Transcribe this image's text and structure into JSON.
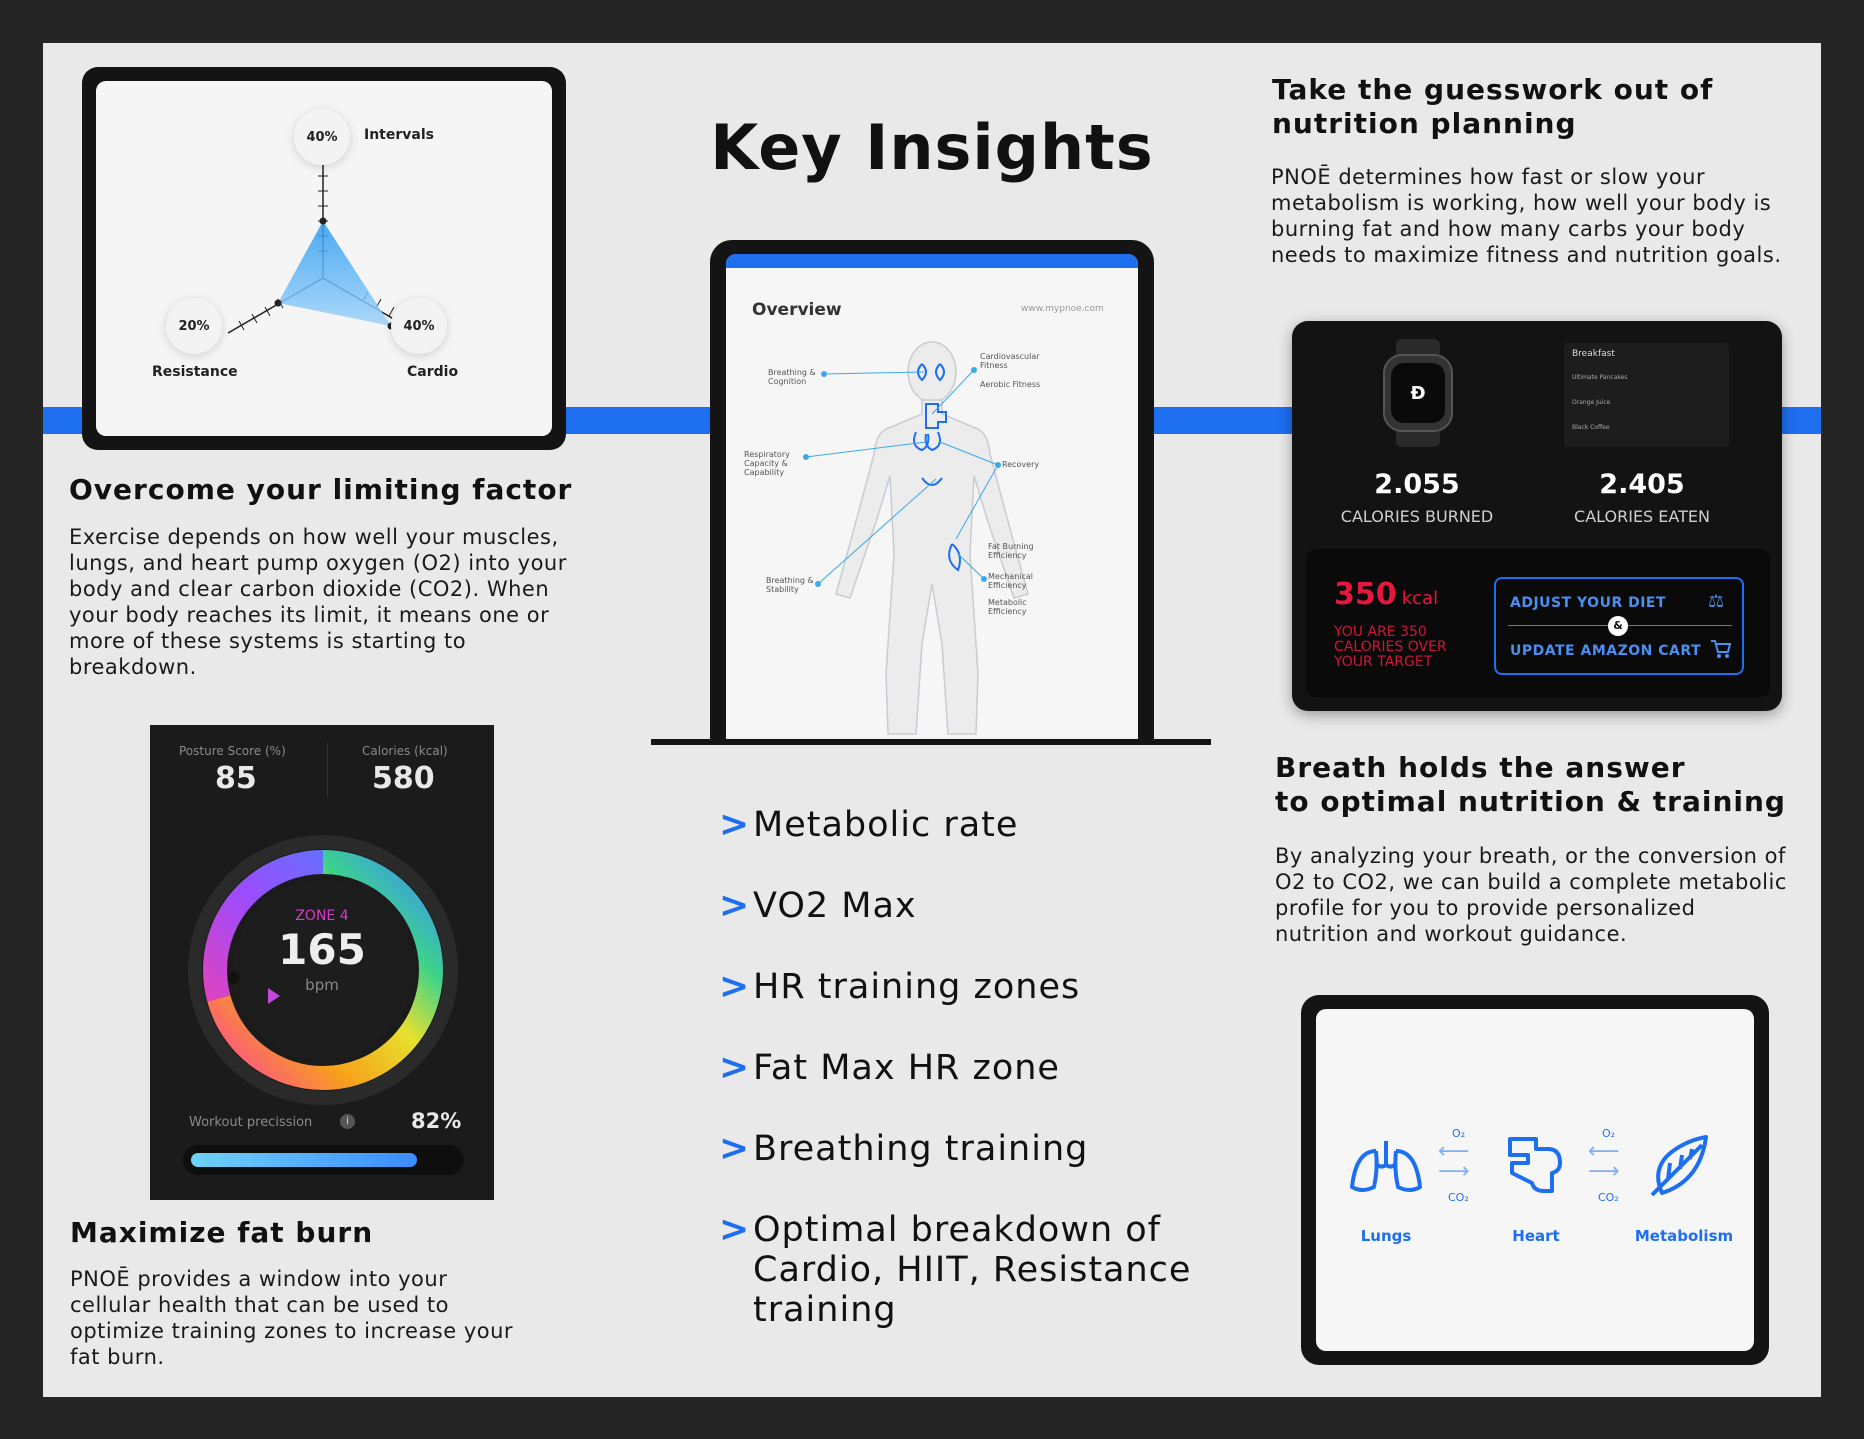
{
  "title": "Key Insights",
  "accent_color": "#1e6ff0",
  "radar": {
    "top_value": "40%",
    "top_label": "Intervals",
    "left_value": "20%",
    "left_label": "Resistance",
    "right_value": "40%",
    "right_label": "Cardio"
  },
  "limiting": {
    "title": "Overcome your limiting factor",
    "body": "Exercise depends on how well your muscles, lungs, and heart pump oxygen (O2) into your body and clear carbon dioxide (CO2). When your body reaches its limit, it means one or more of these systems is starting to breakdown."
  },
  "phone": {
    "posture_label": "Posture Score (%)",
    "posture_value": "85",
    "calories_label": "Calories (kcal)",
    "calories_value": "580",
    "zone": "ZONE 4",
    "bpm_value": "165",
    "bpm_unit": "bpm",
    "precision_label": "Workout precission",
    "precision_value": "82%",
    "precision_fraction": 0.82
  },
  "fat": {
    "title": "Maximize fat burn",
    "body": "PNOĒ provides a window into your cellular health that can be used to optimize training zones to increase your fat burn."
  },
  "overview": {
    "title": "Overview",
    "url": "www.mypnoe.com",
    "labels_left": [
      "Breathing & Cognition",
      "Respiratory Capacity & Capability",
      "Breathing & Stability"
    ],
    "labels_right": [
      "Cardiovascular Fitness",
      "Aerobic Fitness",
      "Recovery",
      "Fat Burning Efficiency",
      "Mechanical Efficiency",
      "Metabolic Efficiency"
    ]
  },
  "insights": [
    "Metabolic rate",
    "VO2 Max",
    "HR training zones",
    "Fat Max HR zone",
    "Breathing training",
    "Optimal breakdown of Cardio, HIIT, Resistance training"
  ],
  "nutrition": {
    "title": "Take the guesswork out of nutrition planning",
    "body": "PNOĒ determines how fast or slow your metabolism is working, how well your body is burning fat and how many carbs your body needs to maximize fitness and nutrition goals."
  },
  "nut_card": {
    "burned_value": "2.055",
    "burned_label": "CALORIES BURNED",
    "eaten_value": "2.405",
    "eaten_label": "CALORIES EATEN",
    "over_value": "350",
    "over_unit": "kcal",
    "over_text": "YOU ARE 350 CALORIES OVER YOUR TARGET",
    "btn_diet": "ADJUST YOUR DIET",
    "btn_amp": "&",
    "btn_cart": "UPDATE AMAZON CART",
    "meals": [
      "Breakfast",
      "Ultimate Pancakes",
      "Orange Juice",
      "Black Coffee"
    ]
  },
  "breath": {
    "title_line1": "Breath holds the answer",
    "title_line2": "to optimal nutrition & training",
    "body": "By analyzing your breath, or the conversion of O2 to CO2, we can build a complete metabolic profile for you to provide personalized nutrition and workout guidance."
  },
  "organs": {
    "lungs": "Lungs",
    "heart": "Heart",
    "metabolism": "Metabolism",
    "o2": "O₂",
    "co2": "CO₂"
  }
}
